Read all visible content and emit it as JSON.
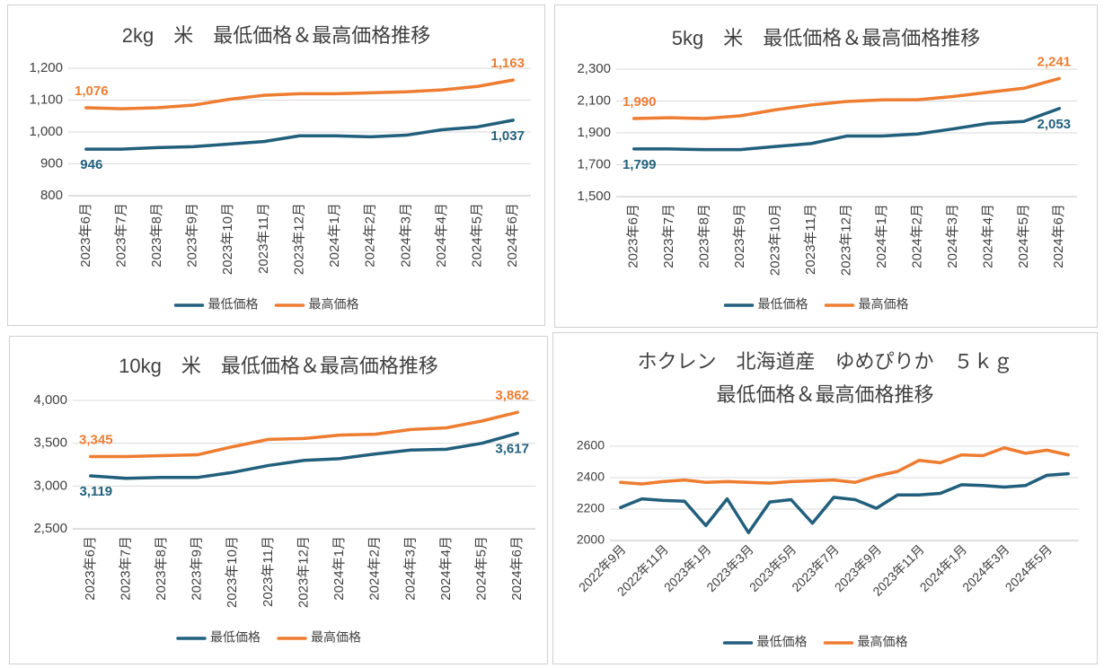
{
  "chart_data": [
    {
      "type": "line",
      "title": "2kg　米　最低価格＆最高価格推移",
      "categories": [
        "2023年6月",
        "2023年7月",
        "2023年8月",
        "2023年9月",
        "2023年10月",
        "2023年11月",
        "2023年12月",
        "2024年1月",
        "2024年2月",
        "2024年3月",
        "2024年4月",
        "2024年5月",
        "2024年6月"
      ],
      "series": [
        {
          "name": "最低価格",
          "color": "#215f7c",
          "values": [
            946,
            946,
            951,
            954,
            962,
            970,
            988,
            988,
            985,
            990,
            1007,
            1016,
            1037
          ],
          "value_labels": [
            "946",
            null,
            null,
            null,
            null,
            null,
            null,
            null,
            null,
            null,
            null,
            null,
            "1,037"
          ]
        },
        {
          "name": "最高価格",
          "color": "#ee7d31",
          "values": [
            1076,
            1073,
            1076,
            1084,
            1102,
            1115,
            1120,
            1120,
            1123,
            1126,
            1132,
            1143,
            1163
          ],
          "value_labels": [
            "1,076",
            null,
            null,
            null,
            null,
            null,
            null,
            null,
            null,
            null,
            null,
            null,
            "1,163"
          ]
        }
      ],
      "ylim": [
        800,
        1200
      ],
      "yticks": [
        800,
        900,
        {
          "value": 1000,
          "label": "1,000"
        },
        {
          "value": 1100,
          "label": "1,100"
        },
        {
          "value": 1200,
          "label": "1,200"
        }
      ],
      "grid": true,
      "legend": "bottom"
    },
    {
      "type": "line",
      "title": "5kg　米　最低価格＆最高価格推移",
      "categories": [
        "2023年6月",
        "2023年7月",
        "2023年8月",
        "2023年9月",
        "2023年10月",
        "2023年11月",
        "2023年12月",
        "2024年1月",
        "2024年2月",
        "2024年3月",
        "2024年4月",
        "2024年5月",
        "2024年6月"
      ],
      "series": [
        {
          "name": "最低価格",
          "color": "#215f7c",
          "values": [
            1799,
            1799,
            1795,
            1795,
            1815,
            1833,
            1880,
            1880,
            1893,
            1925,
            1960,
            1972,
            2053
          ],
          "value_labels": [
            "1,799",
            null,
            null,
            null,
            null,
            null,
            null,
            null,
            null,
            null,
            null,
            null,
            "2,053"
          ]
        },
        {
          "name": "最高価格",
          "color": "#ee7d31",
          "values": [
            1990,
            1995,
            1990,
            2007,
            2045,
            2075,
            2097,
            2107,
            2108,
            2128,
            2155,
            2180,
            2241
          ],
          "value_labels": [
            "1,990",
            null,
            null,
            null,
            null,
            null,
            null,
            null,
            null,
            null,
            null,
            null,
            "2,241"
          ]
        }
      ],
      "ylim": [
        1500,
        2300
      ],
      "yticks": [
        {
          "value": 1500,
          "label": "1,500"
        },
        {
          "value": 1700,
          "label": "1,700"
        },
        {
          "value": 1900,
          "label": "1,900"
        },
        {
          "value": 2100,
          "label": "2,100"
        },
        {
          "value": 2300,
          "label": "2,300"
        }
      ],
      "grid": true,
      "legend": "bottom"
    },
    {
      "type": "line",
      "title": "10kg　米　最低価格＆最高価格推移",
      "categories": [
        "2023年6月",
        "2023年7月",
        "2023年8月",
        "2023年9月",
        "2023年10月",
        "2023年11月",
        "2023年12月",
        "2024年1月",
        "2024年2月",
        "2024年3月",
        "2024年4月",
        "2024年5月",
        "2024年6月"
      ],
      "series": [
        {
          "name": "最低価格",
          "color": "#215f7c",
          "values": [
            3119,
            3090,
            3100,
            3100,
            3160,
            3240,
            3300,
            3320,
            3375,
            3420,
            3430,
            3500,
            3617
          ],
          "value_labels": [
            "3,119",
            null,
            null,
            null,
            null,
            null,
            null,
            null,
            null,
            null,
            null,
            null,
            "3,617"
          ]
        },
        {
          "name": "最高価格",
          "color": "#ee7d31",
          "values": [
            3345,
            3345,
            3355,
            3365,
            3460,
            3545,
            3555,
            3595,
            3605,
            3660,
            3680,
            3760,
            3862
          ],
          "value_labels": [
            "3,345",
            null,
            null,
            null,
            null,
            null,
            null,
            null,
            null,
            null,
            null,
            null,
            "3,862"
          ]
        }
      ],
      "ylim": [
        2500,
        4000
      ],
      "yticks": [
        {
          "value": 2500,
          "label": "2,500"
        },
        {
          "value": 3000,
          "label": "3,000"
        },
        {
          "value": 3500,
          "label": "3,500"
        },
        {
          "value": 4000,
          "label": "4,000"
        }
      ],
      "grid": true,
      "legend": "bottom"
    },
    {
      "type": "line",
      "title": "ホクレン　北海道産　ゆめぴりか　５ｋｇ",
      "subtitle": "最低価格＆最高価格推移",
      "categories": [
        "2022年9月",
        null,
        "2022年11月",
        null,
        "2023年1月",
        null,
        "2023年3月",
        null,
        "2023年5月",
        null,
        "2023年7月",
        null,
        "2023年9月",
        null,
        "2023年11月",
        null,
        "2024年1月",
        null,
        "2024年3月",
        null,
        "2024年5月",
        null
      ],
      "series": [
        {
          "name": "最低価格",
          "color": "#215f7c",
          "values": [
            2210,
            2265,
            2255,
            2250,
            2095,
            2265,
            2050,
            2245,
            2260,
            2110,
            2275,
            2260,
            2205,
            2290,
            2290,
            2300,
            2355,
            2350,
            2340,
            2350,
            2415,
            2425
          ]
        },
        {
          "name": "最高価格",
          "color": "#ee7d31",
          "values": [
            2370,
            2360,
            2375,
            2385,
            2370,
            2375,
            2370,
            2365,
            2375,
            2380,
            2385,
            2370,
            2410,
            2440,
            2510,
            2495,
            2545,
            2540,
            2590,
            2555,
            2575,
            2545
          ]
        }
      ],
      "ylim": [
        2000,
        2600
      ],
      "yticks": [
        2000,
        2200,
        2400,
        2600
      ],
      "grid": true,
      "legend": "bottom"
    }
  ]
}
